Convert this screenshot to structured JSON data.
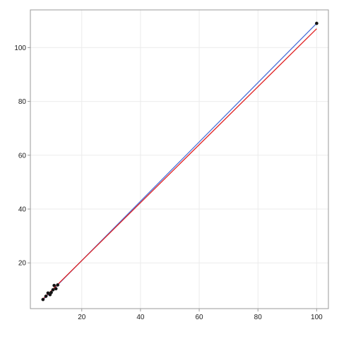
{
  "chart_data": {
    "type": "scatter",
    "title": "",
    "xlabel": "",
    "ylabel": "",
    "xlim": [
      2.5,
      104
    ],
    "ylim": [
      3,
      114
    ],
    "grid": true,
    "x_ticks": [
      20,
      40,
      60,
      80,
      100
    ],
    "y_ticks": [
      20,
      40,
      60,
      80,
      100
    ],
    "points": [
      {
        "x": 6.8,
        "y": 6.4
      },
      {
        "x": 7.8,
        "y": 7.6
      },
      {
        "x": 8.5,
        "y": 8.8
      },
      {
        "x": 9.2,
        "y": 8.2
      },
      {
        "x": 9.6,
        "y": 9.0
      },
      {
        "x": 10.2,
        "y": 10.0
      },
      {
        "x": 10.6,
        "y": 11.6
      },
      {
        "x": 11.2,
        "y": 10.4
      },
      {
        "x": 11.8,
        "y": 11.8
      },
      {
        "x": 100,
        "y": 109
      }
    ],
    "lines": [
      {
        "color": "#4a6fd8",
        "x": [
          6.8,
          100
        ],
        "y": [
          6.3,
          109
        ]
      },
      {
        "color": "#e02020",
        "x": [
          6.8,
          100
        ],
        "y": [
          6.6,
          107
        ]
      }
    ],
    "colors": {
      "point_fill": "#111111",
      "grid": "#ebebeb",
      "frame": "#9a9a9a"
    }
  }
}
